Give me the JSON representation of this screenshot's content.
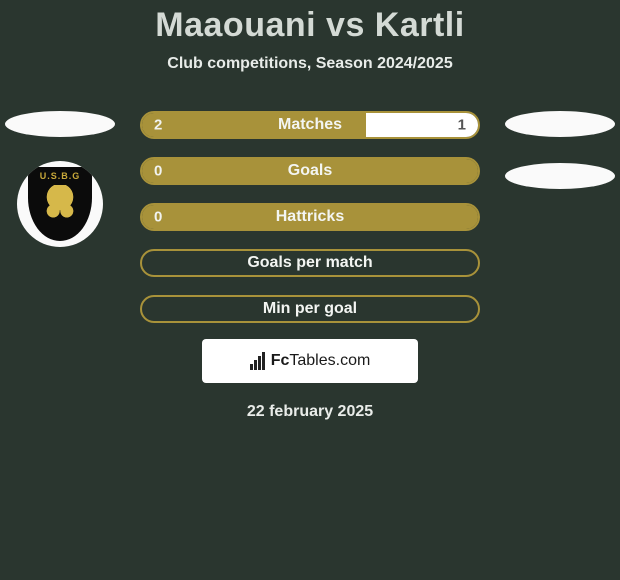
{
  "header": {
    "title": "Maaouani vs Kartli",
    "subtitle": "Club competitions, Season 2024/2025"
  },
  "left_badge": {
    "abbrev": "U.S.B.G"
  },
  "colors": {
    "olive": "#a8923a",
    "olive_border": "#b19a3e",
    "white": "#ffffff",
    "bg": "#2a362f"
  },
  "bars": [
    {
      "label": "Matches",
      "left_value": "2",
      "right_value": "1",
      "left_fill_pct": 66.7,
      "right_fill_pct": 33.3,
      "left_color": "#a8923a",
      "right_color": "#ffffff",
      "border_color": "#a8923a",
      "show_left": true,
      "show_right": true
    },
    {
      "label": "Goals",
      "left_value": "0",
      "right_value": "",
      "left_fill_pct": 100,
      "right_fill_pct": 0,
      "left_color": "#a8923a",
      "right_color": "#ffffff",
      "border_color": "#a8923a",
      "show_left": true,
      "show_right": false
    },
    {
      "label": "Hattricks",
      "left_value": "0",
      "right_value": "",
      "left_fill_pct": 100,
      "right_fill_pct": 0,
      "left_color": "#a8923a",
      "right_color": "#ffffff",
      "border_color": "#a8923a",
      "show_left": true,
      "show_right": false
    },
    {
      "label": "Goals per match",
      "left_value": "",
      "right_value": "",
      "left_fill_pct": 0,
      "right_fill_pct": 0,
      "left_color": "#a8923a",
      "right_color": "#ffffff",
      "border_color": "#a8923a",
      "show_left": false,
      "show_right": false
    },
    {
      "label": "Min per goal",
      "left_value": "",
      "right_value": "",
      "left_fill_pct": 0,
      "right_fill_pct": 0,
      "left_color": "#a8923a",
      "right_color": "#ffffff",
      "border_color": "#a8923a",
      "show_left": false,
      "show_right": false
    }
  ],
  "footer": {
    "brand_prefix": "Fc",
    "brand_suffix": "Tables.com",
    "date": "22 february 2025"
  }
}
